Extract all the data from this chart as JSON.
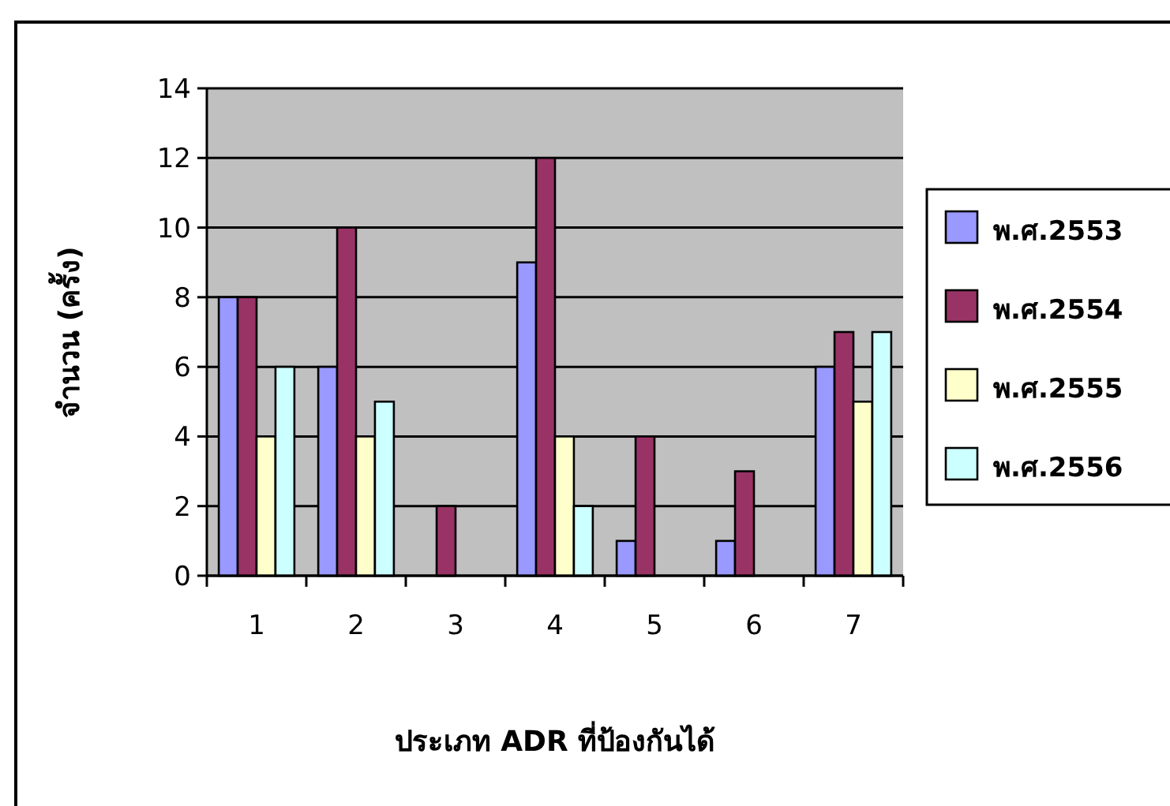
{
  "chart_data": {
    "type": "bar",
    "xlabel": "ประเภท ADR ที่ป้องกันได้",
    "ylabel": "จำนวน (ครั้ง)",
    "categories": [
      "1",
      "2",
      "3",
      "4",
      "5",
      "6",
      "7"
    ],
    "series": [
      {
        "name": "พ.ศ.2553",
        "color": "#9999ff",
        "values": [
          8,
          6,
          null,
          9,
          1,
          1,
          6
        ]
      },
      {
        "name": "พ.ศ.2554",
        "color": "#993366",
        "values": [
          8,
          10,
          2,
          12,
          4,
          3,
          7
        ]
      },
      {
        "name": "พ.ศ.2555",
        "color": "#ffffcc",
        "values": [
          4,
          4,
          null,
          4,
          null,
          null,
          5
        ]
      },
      {
        "name": "พ.ศ.2556",
        "color": "#ccffff",
        "values": [
          6,
          5,
          null,
          2,
          null,
          null,
          7
        ]
      }
    ],
    "ylim": [
      0,
      14
    ],
    "yticks": [
      0,
      2,
      4,
      6,
      8,
      10,
      12,
      14
    ],
    "grid": "y",
    "legend": "right"
  }
}
